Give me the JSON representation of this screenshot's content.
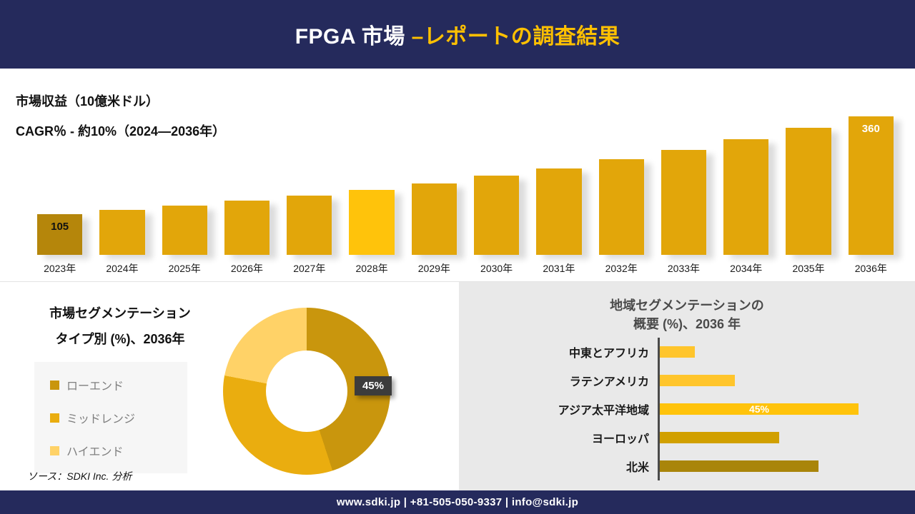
{
  "header": {
    "title_main": "FPGA 市場 ",
    "title_accent": "–レポートの調査結果"
  },
  "revenue": {
    "title": "市場収益（10億米ドル）",
    "cagr": "CAGR％ - 約10%（2024―2036年）"
  },
  "segmentation": {
    "title_line1": "市場セグメンテーション",
    "title_line2": "タイプ別 (%)、2036年",
    "annotation": "45%"
  },
  "regions": {
    "title_line1": "地域セグメンテーションの",
    "title_line2": "概要 (%)、2036 年"
  },
  "source": "ソース：SDKI Inc. 分析",
  "footer": {
    "text": "www.sdki.jp | +81-505-050-9337 | info@sdki.jp"
  },
  "colors": {
    "navy": "#252A5C",
    "accent_yellow": "#FFC000",
    "gold": "#E2A60A",
    "dark_gold": "#B5860B",
    "bright_gold": "#FFC30B",
    "pale_gold": "#FFD267",
    "panel_gray": "#E9E9E9",
    "annotation_box": "#3C3C3C"
  },
  "chart_data": [
    {
      "type": "bar",
      "title": "市場収益（10億米ドル）",
      "subtitle": "CAGR％ - 約10%（2024―2036年）",
      "categories": [
        "2023年",
        "2024年",
        "2025年",
        "2026年",
        "2027年",
        "2028年",
        "2029年",
        "2030年",
        "2031年",
        "2032年",
        "2033年",
        "2034年",
        "2035年",
        "2036年"
      ],
      "values": [
        105,
        116,
        127,
        140,
        154,
        169,
        186,
        205,
        225,
        248,
        272,
        300,
        330,
        360
      ],
      "ylim": [
        0,
        380
      ],
      "bar_colors": [
        "#B5860B",
        "#E2A60A",
        "#E2A60A",
        "#E2A60A",
        "#E2A60A",
        "#FFC30B",
        "#E2A60A",
        "#E2A60A",
        "#E2A60A",
        "#E2A60A",
        "#E2A60A",
        "#E2A60A",
        "#E2A60A",
        "#E2A60A"
      ],
      "value_labels": [
        {
          "index": 0,
          "text": "105",
          "color": "#111111"
        },
        {
          "index": 13,
          "text": "360",
          "color": "#ffffff"
        }
      ]
    },
    {
      "type": "pie",
      "title": "市場セグメンテーション タイプ別 (%)、2036年",
      "labels": [
        "ローエンド",
        "ミッドレンジ",
        "ハイエンド"
      ],
      "values": [
        45,
        33,
        22
      ],
      "colors": [
        "#C9960D",
        "#EAAD0F",
        "#FFD267"
      ],
      "annotation": "45%",
      "legend_position": "left"
    },
    {
      "type": "bar",
      "orientation": "horizontal",
      "title": "地域セグメンテーションの 概要 (%)、2036 年",
      "categories": [
        "中東とアフリカ",
        "ラテンアメリカ",
        "アジア太平洋地域",
        "ヨーロッパ",
        "北米"
      ],
      "values": [
        8,
        17,
        45,
        27,
        36
      ],
      "xlim": [
        0,
        47
      ],
      "colors": [
        "#FFC52C",
        "#FFC52C",
        "#FFC30B",
        "#D1A000",
        "#A9850A"
      ],
      "annotation": {
        "index": 2,
        "text": "45%"
      }
    }
  ]
}
